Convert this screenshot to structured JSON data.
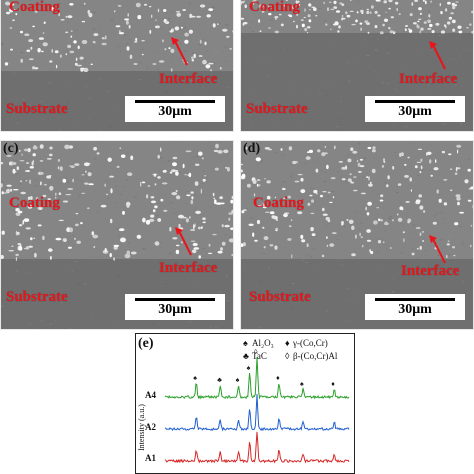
{
  "panels": [
    {
      "letter": "",
      "coating": "Coating",
      "interface": "Interface",
      "substrate": "Substrate",
      "scale": "30μm"
    },
    {
      "letter": "",
      "coating": "Coating",
      "interface": "Interface",
      "substrate": "Substrate",
      "scale": "30μm"
    },
    {
      "letter": "(c)",
      "coating": "Coating",
      "interface": "Interface",
      "substrate": "Substrate",
      "scale": "30μm"
    },
    {
      "letter": "(d)",
      "coating": "Coating",
      "interface": "Interface",
      "substrate": "Substrate",
      "scale": "30μm"
    }
  ],
  "xrd": {
    "panel_label": "(e)",
    "ylabel": "Intensity (a.u.)",
    "legend": [
      {
        "symbol": "♠",
        "text": "Al₂O₃"
      },
      {
        "symbol": "♦",
        "text": "γ-(Co,Cr)"
      },
      {
        "symbol": "♣",
        "text": "TaC"
      },
      {
        "symbol": "◊",
        "text": "β-(Co,Cr)Al"
      }
    ],
    "series": [
      {
        "name": "A4",
        "color": "#2ca02c"
      },
      {
        "name": "A2",
        "color": "#1f5fd0"
      },
      {
        "name": "A1",
        "color": "#d62728"
      }
    ]
  },
  "chart_data": {
    "type": "line",
    "title": "(e)",
    "ylabel": "Intensity (a.u.)",
    "xlabel": "",
    "series": [
      {
        "name": "A4",
        "peaks": [
          0.17,
          0.3,
          0.4,
          0.46,
          0.5,
          0.62,
          0.75,
          0.92
        ]
      },
      {
        "name": "A2",
        "peaks": [
          0.17,
          0.3,
          0.4,
          0.46,
          0.5,
          0.62,
          0.75,
          0.92
        ]
      },
      {
        "name": "A1",
        "peaks": [
          0.17,
          0.3,
          0.4,
          0.46,
          0.5,
          0.62,
          0.75,
          0.92
        ]
      }
    ]
  }
}
